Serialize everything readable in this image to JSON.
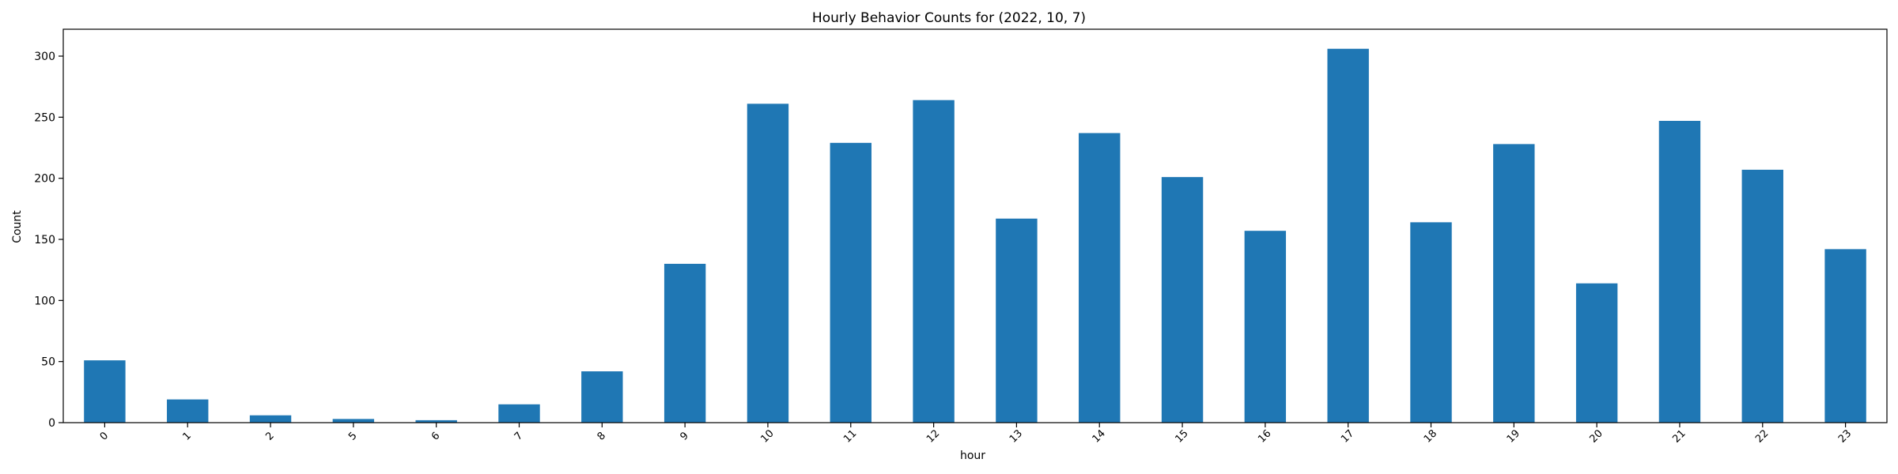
{
  "chart_data": {
    "type": "bar",
    "title": "Hourly Behavior Counts for (2022, 10, 7)",
    "xlabel": "hour",
    "ylabel": "Count",
    "categories": [
      "0",
      "1",
      "2",
      "5",
      "6",
      "7",
      "8",
      "9",
      "10",
      "11",
      "12",
      "13",
      "14",
      "15",
      "16",
      "17",
      "18",
      "19",
      "20",
      "21",
      "22",
      "23"
    ],
    "values": [
      51,
      19,
      6,
      3,
      2,
      15,
      42,
      130,
      261,
      229,
      264,
      167,
      237,
      201,
      157,
      306,
      164,
      228,
      114,
      247,
      207,
      142
    ],
    "ylim": [
      0,
      322
    ],
    "yticks": [
      0,
      50,
      100,
      150,
      200,
      250,
      300
    ],
    "grid": false,
    "legend": "none",
    "bar_color": "#1f77b4"
  }
}
